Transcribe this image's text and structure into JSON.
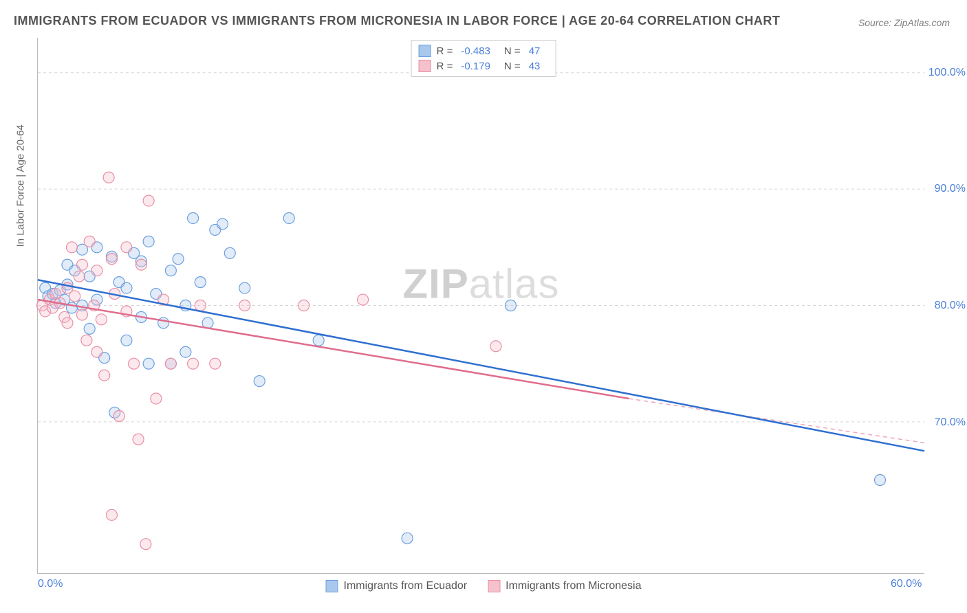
{
  "title": "IMMIGRANTS FROM ECUADOR VS IMMIGRANTS FROM MICRONESIA IN LABOR FORCE | AGE 20-64 CORRELATION CHART",
  "source": "Source: ZipAtlas.com",
  "y_axis_title": "In Labor Force | Age 20-64",
  "watermark_a": "ZIP",
  "watermark_b": "atlas",
  "chart": {
    "type": "scatter",
    "xlim": [
      0,
      60
    ],
    "ylim": [
      57,
      103
    ],
    "x_ticks": [
      {
        "value": 0,
        "label": "0.0%"
      },
      {
        "value": 60,
        "label": "60.0%"
      }
    ],
    "y_ticks": [
      {
        "value": 70,
        "label": "70.0%"
      },
      {
        "value": 80,
        "label": "80.0%"
      },
      {
        "value": 90,
        "label": "90.0%"
      },
      {
        "value": 100,
        "label": "100.0%"
      }
    ],
    "marker_radius": 8,
    "marker_fill_opacity": 0.35,
    "marker_stroke_width": 1.2,
    "line_width": 2.5,
    "background_color": "#ffffff",
    "grid_color": "#d5d5d5",
    "series": [
      {
        "name": "Immigrants from Ecuador",
        "color_fill": "#a9c9ec",
        "color_stroke": "#6b9fe0",
        "line_color": "#2f6fd0",
        "R": "-0.483",
        "N": "47",
        "trend": {
          "x1": 0,
          "y1": 82.2,
          "x2": 60,
          "y2": 67.5
        },
        "dash": {
          "x1": 0,
          "y1": 82.2,
          "x2": 60,
          "y2": 67.5
        },
        "points": [
          [
            0.5,
            81.5
          ],
          [
            0.7,
            80.8
          ],
          [
            1.0,
            81.0
          ],
          [
            1.2,
            80.2
          ],
          [
            1.5,
            81.3
          ],
          [
            1.8,
            80.5
          ],
          [
            2.0,
            81.8
          ],
          [
            2.0,
            83.5
          ],
          [
            2.3,
            79.8
          ],
          [
            2.5,
            83.0
          ],
          [
            3.0,
            80.0
          ],
          [
            3.0,
            84.8
          ],
          [
            3.5,
            82.5
          ],
          [
            3.5,
            78.0
          ],
          [
            4.0,
            85.0
          ],
          [
            4.0,
            80.5
          ],
          [
            4.5,
            75.5
          ],
          [
            5.0,
            84.2
          ],
          [
            5.2,
            70.8
          ],
          [
            5.5,
            82.0
          ],
          [
            6.0,
            77.0
          ],
          [
            6.0,
            81.5
          ],
          [
            6.5,
            84.5
          ],
          [
            7.0,
            83.8
          ],
          [
            7.0,
            79.0
          ],
          [
            7.5,
            85.5
          ],
          [
            8.0,
            81.0
          ],
          [
            8.5,
            78.5
          ],
          [
            9.0,
            83.0
          ],
          [
            9.0,
            75.0
          ],
          [
            9.5,
            84.0
          ],
          [
            10.0,
            76.0
          ],
          [
            10.0,
            80.0
          ],
          [
            10.5,
            87.5
          ],
          [
            11.0,
            82.0
          ],
          [
            11.5,
            78.5
          ],
          [
            12.0,
            86.5
          ],
          [
            12.5,
            87.0
          ],
          [
            13.0,
            84.5
          ],
          [
            14.0,
            81.5
          ],
          [
            15.0,
            73.5
          ],
          [
            17.0,
            87.5
          ],
          [
            19.0,
            77.0
          ],
          [
            25.0,
            60.0
          ],
          [
            32.0,
            80.0
          ],
          [
            57.0,
            65.0
          ],
          [
            7.5,
            75.0
          ]
        ]
      },
      {
        "name": "Immigrants from Micronesia",
        "color_fill": "#f5c1cd",
        "color_stroke": "#e88fa4",
        "line_color": "#e06c8c",
        "R": "-0.179",
        "N": "43",
        "trend": {
          "x1": 0,
          "y1": 80.5,
          "x2": 40,
          "y2": 72.0
        },
        "dash": {
          "x1": 40,
          "y1": 72.0,
          "x2": 60,
          "y2": 68.2
        },
        "points": [
          [
            0.3,
            80.0
          ],
          [
            0.5,
            79.5
          ],
          [
            0.8,
            80.5
          ],
          [
            1.0,
            79.8
          ],
          [
            1.2,
            81.0
          ],
          [
            1.5,
            80.2
          ],
          [
            1.8,
            79.0
          ],
          [
            2.0,
            81.5
          ],
          [
            2.0,
            78.5
          ],
          [
            2.3,
            85.0
          ],
          [
            2.5,
            80.8
          ],
          [
            2.8,
            82.5
          ],
          [
            3.0,
            79.2
          ],
          [
            3.0,
            83.5
          ],
          [
            3.3,
            77.0
          ],
          [
            3.5,
            85.5
          ],
          [
            3.8,
            80.0
          ],
          [
            4.0,
            76.0
          ],
          [
            4.0,
            83.0
          ],
          [
            4.3,
            78.8
          ],
          [
            4.5,
            74.0
          ],
          [
            4.8,
            91.0
          ],
          [
            5.0,
            84.0
          ],
          [
            5.0,
            62.0
          ],
          [
            5.2,
            81.0
          ],
          [
            5.5,
            70.5
          ],
          [
            6.0,
            85.0
          ],
          [
            6.0,
            79.5
          ],
          [
            6.5,
            75.0
          ],
          [
            7.0,
            83.5
          ],
          [
            7.3,
            59.5
          ],
          [
            7.5,
            89.0
          ],
          [
            8.0,
            72.0
          ],
          [
            8.5,
            80.5
          ],
          [
            9.0,
            75.0
          ],
          [
            10.5,
            75.0
          ],
          [
            11.0,
            80.0
          ],
          [
            12.0,
            75.0
          ],
          [
            14.0,
            80.0
          ],
          [
            18.0,
            80.0
          ],
          [
            22.0,
            80.5
          ],
          [
            31.0,
            76.5
          ],
          [
            6.8,
            68.5
          ]
        ]
      }
    ]
  },
  "legend_bottom": [
    {
      "label": "Immigrants from Ecuador",
      "fill": "#a9c9ec",
      "stroke": "#6b9fe0"
    },
    {
      "label": "Immigrants from Micronesia",
      "fill": "#f5c1cd",
      "stroke": "#e88fa4"
    }
  ],
  "legend_top_labels": {
    "R": "R =",
    "N": "N ="
  }
}
